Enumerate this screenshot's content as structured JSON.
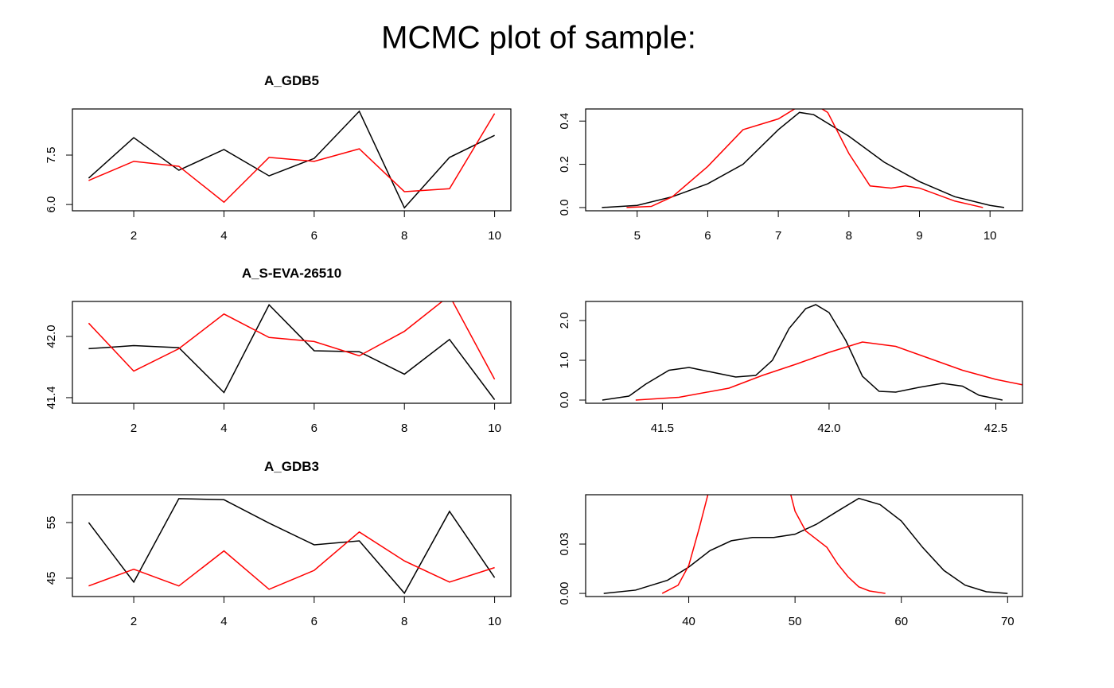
{
  "title": "MCMC plot of sample:",
  "chart_data": [
    {
      "type": "line",
      "title": "A_GDB5",
      "xlim": [
        0.64,
        10.36
      ],
      "ylim": [
        5.81,
        8.9
      ],
      "xticks": [
        2,
        4,
        6,
        8,
        10
      ],
      "yticks": [
        {
          "value": 6,
          "label": "6.0"
        },
        7.5
      ],
      "series": [
        {
          "color": "#000000",
          "x": [
            1,
            2,
            3,
            4,
            5,
            6,
            7,
            8,
            9,
            10
          ],
          "values": [
            6.8,
            8.03,
            7.04,
            7.67,
            6.87,
            7.4,
            8.83,
            5.9,
            7.43,
            8.1
          ]
        },
        {
          "color": "#ff0000",
          "x": [
            1,
            2,
            3,
            4,
            5,
            6,
            7,
            8,
            9,
            10
          ],
          "values": [
            6.73,
            7.31,
            7.16,
            6.07,
            7.43,
            7.31,
            7.69,
            6.39,
            6.48,
            8.76
          ]
        }
      ]
    },
    {
      "type": "line",
      "xlim": [
        4.27,
        10.46
      ],
      "ylim": [
        -0.015,
        0.456
      ],
      "xticks": [
        5,
        6,
        7,
        8,
        9,
        10
      ],
      "yticks": [
        {
          "value": 0,
          "label": "0.0"
        },
        0.2,
        0.4
      ],
      "series": [
        {
          "color": "#000000",
          "x": [
            4.5,
            5,
            5.5,
            6,
            6.5,
            7,
            7.3,
            7.5,
            8,
            8.5,
            9,
            9.5,
            10,
            10.2
          ],
          "values": [
            0,
            0.01,
            0.05,
            0.11,
            0.2,
            0.36,
            0.44,
            0.43,
            0.33,
            0.21,
            0.12,
            0.05,
            0.01,
            0
          ]
        },
        {
          "color": "#ff0000",
          "x": [
            4.85,
            5.2,
            5.5,
            6,
            6.5,
            7,
            7.3,
            7.5,
            7.7,
            8,
            8.3,
            8.6,
            8.8,
            9,
            9.5,
            9.9
          ],
          "values": [
            0,
            0.005,
            0.05,
            0.19,
            0.36,
            0.41,
            0.47,
            0.48,
            0.44,
            0.25,
            0.1,
            0.09,
            0.1,
            0.09,
            0.03,
            0
          ]
        }
      ]
    },
    {
      "type": "line",
      "title": "A_S-EVA-26510",
      "xlim": [
        0.64,
        10.36
      ],
      "ylim": [
        41.345,
        42.343
      ],
      "xticks": [
        2,
        4,
        6,
        8,
        10
      ],
      "yticks": [
        41.4,
        {
          "value": 42,
          "label": "42.0"
        }
      ],
      "series": [
        {
          "color": "#000000",
          "x": [
            1,
            2,
            3,
            4,
            5,
            6,
            7,
            8,
            9,
            10
          ],
          "values": [
            41.88,
            41.91,
            41.89,
            41.45,
            42.31,
            41.86,
            41.85,
            41.63,
            41.97,
            41.38
          ]
        },
        {
          "color": "#ff0000",
          "x": [
            1,
            2,
            3,
            4,
            5,
            6,
            7,
            8,
            9,
            10
          ],
          "values": [
            42.13,
            41.66,
            41.88,
            42.22,
            41.99,
            41.95,
            41.81,
            42.05,
            42.4,
            41.58
          ]
        }
      ]
    },
    {
      "type": "line",
      "xlim": [
        41.27,
        42.58
      ],
      "ylim": [
        -0.08,
        2.48
      ],
      "xticks": [
        41.5,
        {
          "value": 42,
          "label": "42.0"
        },
        42.5
      ],
      "yticks": [
        {
          "value": 0,
          "label": "0.0"
        },
        {
          "value": 1,
          "label": "1.0"
        },
        {
          "value": 2,
          "label": "2.0"
        }
      ],
      "series": [
        {
          "color": "#000000",
          "x": [
            41.32,
            41.4,
            41.45,
            41.52,
            41.58,
            41.65,
            41.72,
            41.78,
            41.83,
            41.88,
            41.93,
            41.96,
            42.0,
            42.05,
            42.1,
            42.15,
            42.2,
            42.27,
            42.34,
            42.4,
            42.45,
            42.52
          ],
          "values": [
            0,
            0.1,
            0.4,
            0.75,
            0.82,
            0.7,
            0.58,
            0.62,
            1.0,
            1.8,
            2.3,
            2.4,
            2.2,
            1.5,
            0.6,
            0.22,
            0.2,
            0.32,
            0.42,
            0.35,
            0.12,
            0
          ]
        },
        {
          "color": "#ff0000",
          "x": [
            41.42,
            41.55,
            41.7,
            41.8,
            41.9,
            42.0,
            42.1,
            42.2,
            42.3,
            42.4,
            42.5,
            42.6
          ],
          "values": [
            0,
            0.07,
            0.3,
            0.62,
            0.9,
            1.2,
            1.46,
            1.35,
            1.05,
            0.75,
            0.52,
            0.35
          ]
        }
      ]
    },
    {
      "type": "line",
      "title": "A_GDB3",
      "xlim": [
        0.64,
        10.36
      ],
      "ylim": [
        41.7,
        60
      ],
      "xticks": [
        2,
        4,
        6,
        8,
        10
      ],
      "yticks": [
        45,
        55
      ],
      "series": [
        {
          "color": "#000000",
          "x": [
            1,
            2,
            3,
            4,
            5,
            6,
            7,
            8,
            9,
            10
          ],
          "values": [
            55,
            44.3,
            59.3,
            59.1,
            54.9,
            51,
            51.7,
            42.3,
            57,
            45.1
          ]
        },
        {
          "color": "#ff0000",
          "x": [
            1,
            2,
            3,
            4,
            5,
            6,
            7,
            8,
            9,
            10
          ],
          "values": [
            43.6,
            46.6,
            43.6,
            49.9,
            43,
            46.4,
            53.3,
            48.1,
            44.3,
            46.9
          ]
        }
      ]
    },
    {
      "type": "line",
      "xlim": [
        30.3,
        71.4
      ],
      "ylim": [
        -0.0019,
        0.06
      ],
      "xticks": [
        40,
        50,
        60,
        70
      ],
      "yticks": [
        {
          "value": 0,
          "label": "0.00"
        },
        0.03
      ],
      "series": [
        {
          "color": "#000000",
          "x": [
            32,
            35,
            38,
            40,
            42,
            44,
            46,
            48,
            50,
            52,
            54,
            56,
            58,
            60,
            62,
            64,
            66,
            68,
            70
          ],
          "values": [
            0,
            0.002,
            0.008,
            0.016,
            0.026,
            0.032,
            0.034,
            0.034,
            0.036,
            0.042,
            0.05,
            0.0578,
            0.054,
            0.044,
            0.028,
            0.014,
            0.005,
            0.001,
            0
          ]
        },
        {
          "color": "#ff0000",
          "x": [
            37.5,
            39,
            40,
            41,
            41.8,
            42,
            49,
            49.6,
            50,
            51,
            52,
            53,
            54,
            55,
            56,
            57,
            58.5
          ],
          "values": [
            0,
            0.005,
            0.017,
            0.04,
            0.06,
            0.065,
            0.065,
            0.06,
            0.05,
            0.038,
            0.033,
            0.028,
            0.018,
            0.01,
            0.004,
            0.0015,
            0
          ]
        }
      ]
    }
  ]
}
